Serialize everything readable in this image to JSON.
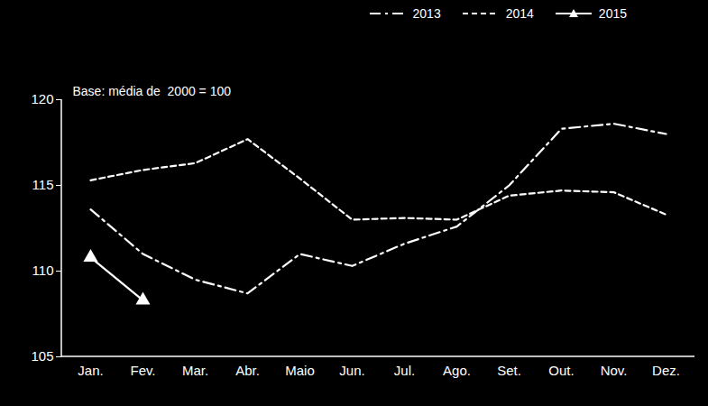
{
  "chart_data": {
    "type": "line",
    "annotation": "Base: média de  2000 = 100",
    "categories": [
      "Jan.",
      "Fev.",
      "Mar.",
      "Abr.",
      "Maio",
      "Jun.",
      "Jul.",
      "Ago.",
      "Set.",
      "Out.",
      "Nov.",
      "Dez."
    ],
    "series": [
      {
        "name": "2013",
        "color": "#ffffff",
        "line_style": "dashdot",
        "values": [
          113.6,
          111.0,
          109.5,
          108.7,
          111.0,
          110.3,
          111.6,
          112.6,
          115.0,
          118.3,
          118.6,
          118.0
        ]
      },
      {
        "name": "2014",
        "color": "#ffffff",
        "line_style": "dashed",
        "values": [
          115.3,
          115.9,
          116.3,
          117.7,
          115.4,
          113.0,
          113.1,
          113.0,
          114.4,
          114.7,
          114.6,
          113.3
        ]
      },
      {
        "name": "2015",
        "color": "#ffffff",
        "line_style": "solid",
        "marker": "triangle",
        "values": [
          110.8,
          108.3,
          null,
          null,
          null,
          null,
          null,
          null,
          null,
          null,
          null,
          null
        ]
      }
    ],
    "ylim": [
      105,
      120
    ],
    "yticks": [
      105,
      110,
      115,
      120
    ],
    "grid": false,
    "legend": "top"
  }
}
